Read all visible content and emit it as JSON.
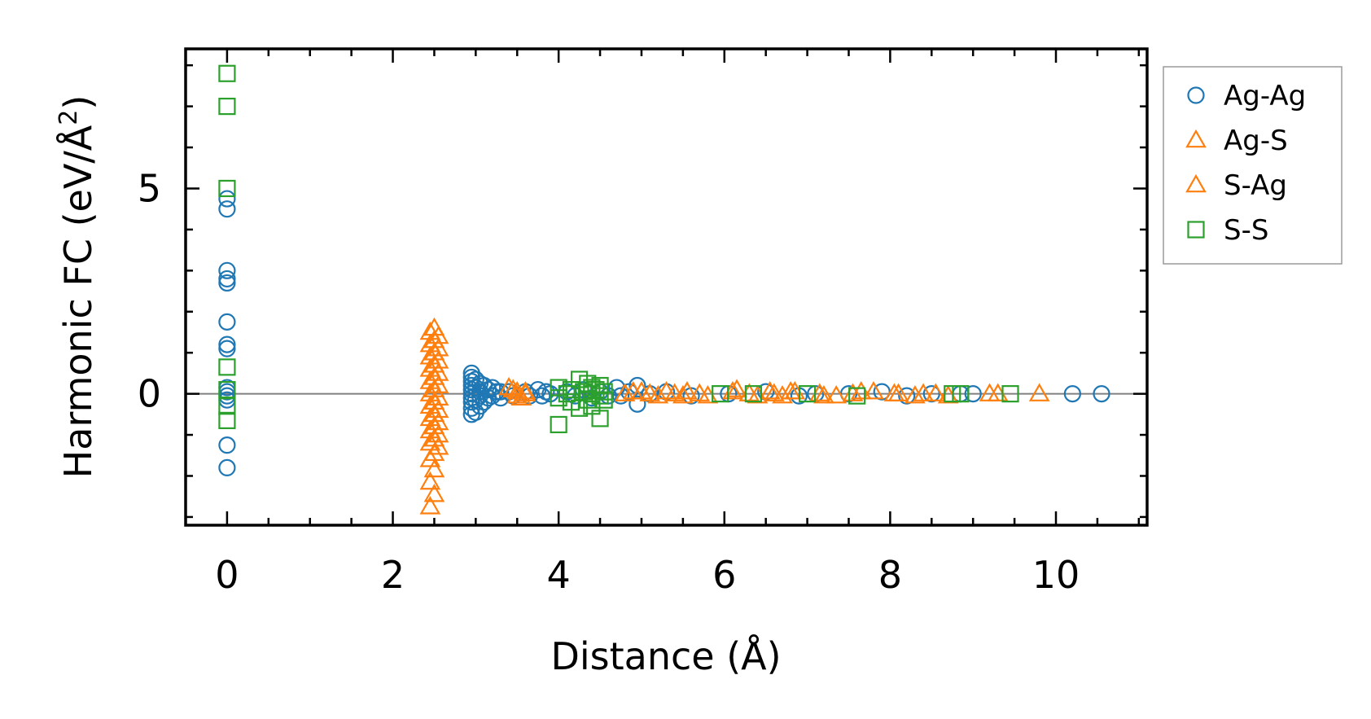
{
  "chart_data": {
    "type": "scatter",
    "xlabel": "Distance (Å)",
    "ylabel_main": "Harmonic FC (eV/Å",
    "ylabel_sup": "2",
    "ylabel_close": ")",
    "xlim": [
      -0.5,
      11.1
    ],
    "ylim": [
      -3.2,
      8.4
    ],
    "x_ticks": [
      0,
      2,
      4,
      6,
      8,
      10
    ],
    "x_tick_labels": [
      "0",
      "2",
      "4",
      "6",
      "8",
      "10"
    ],
    "y_ticks": [
      0,
      5
    ],
    "y_tick_labels": [
      "0",
      "5"
    ],
    "x_minor_step": 0.5,
    "y_minor_step": 1,
    "zero_line": true,
    "grid": false,
    "legend_position": "outside-right-top",
    "series": [
      {
        "name": "Ag-Ag",
        "marker": "circle",
        "color": "#1f77b4",
        "points": [
          [
            0,
            4.75
          ],
          [
            0,
            4.5
          ],
          [
            0,
            3.0
          ],
          [
            0,
            2.8
          ],
          [
            0,
            2.7
          ],
          [
            0,
            1.75
          ],
          [
            0,
            1.2
          ],
          [
            0,
            1.1
          ],
          [
            0,
            0.15
          ],
          [
            0,
            0.05
          ],
          [
            0,
            -0.05
          ],
          [
            0,
            -0.15
          ],
          [
            0,
            -1.25
          ],
          [
            0,
            -1.8
          ],
          [
            2.95,
            0.5
          ],
          [
            2.95,
            0.4
          ],
          [
            2.95,
            0.3
          ],
          [
            2.95,
            0.2
          ],
          [
            2.95,
            0.1
          ],
          [
            2.95,
            0.0
          ],
          [
            2.95,
            -0.1
          ],
          [
            2.95,
            -0.2
          ],
          [
            2.95,
            -0.35
          ],
          [
            2.95,
            -0.5
          ],
          [
            3.0,
            0.35
          ],
          [
            3.0,
            0.15
          ],
          [
            3.0,
            -0.15
          ],
          [
            3.0,
            -0.45
          ],
          [
            3.05,
            0.25
          ],
          [
            3.05,
            0.05
          ],
          [
            3.05,
            -0.05
          ],
          [
            3.05,
            -0.3
          ],
          [
            3.1,
            0.2
          ],
          [
            3.1,
            -0.2
          ],
          [
            3.15,
            0.1
          ],
          [
            3.15,
            -0.1
          ],
          [
            3.2,
            0.15
          ],
          [
            3.2,
            -0.05
          ],
          [
            3.25,
            0.05
          ],
          [
            3.3,
            0.05
          ],
          [
            3.3,
            -0.1
          ],
          [
            3.4,
            0.05
          ],
          [
            3.45,
            -0.05
          ],
          [
            3.6,
            0.05
          ],
          [
            3.65,
            -0.05
          ],
          [
            3.75,
            0.1
          ],
          [
            3.8,
            -0.05
          ],
          [
            3.85,
            0.05
          ],
          [
            3.9,
            0.0
          ],
          [
            4.1,
            0.05
          ],
          [
            4.2,
            -0.05
          ],
          [
            4.3,
            0.1
          ],
          [
            4.4,
            -0.1
          ],
          [
            4.5,
            0.05
          ],
          [
            4.6,
            -0.05
          ],
          [
            4.7,
            0.15
          ],
          [
            4.75,
            -0.05
          ],
          [
            4.85,
            0.05
          ],
          [
            4.95,
            -0.25
          ],
          [
            4.95,
            0.2
          ],
          [
            5.1,
            0.0
          ],
          [
            5.3,
            0.05
          ],
          [
            5.6,
            -0.05
          ],
          [
            6.05,
            0.0
          ],
          [
            6.5,
            0.05
          ],
          [
            6.9,
            -0.05
          ],
          [
            7.1,
            0.0
          ],
          [
            7.5,
            0.0
          ],
          [
            7.9,
            0.05
          ],
          [
            8.2,
            -0.05
          ],
          [
            8.5,
            0.0
          ],
          [
            8.85,
            0.0
          ],
          [
            9.0,
            0.0
          ],
          [
            10.2,
            0.0
          ],
          [
            10.55,
            0.0
          ]
        ]
      },
      {
        "name": "Ag-S",
        "marker": "triangle",
        "color": "#ff7f0e",
        "points": [
          [
            2.45,
            1.5
          ],
          [
            2.5,
            1.3
          ],
          [
            2.55,
            1.1
          ],
          [
            2.45,
            0.9
          ],
          [
            2.5,
            0.7
          ],
          [
            2.55,
            0.5
          ],
          [
            2.45,
            0.3
          ],
          [
            2.5,
            0.1
          ],
          [
            2.55,
            -0.1
          ],
          [
            2.45,
            -0.3
          ],
          [
            2.5,
            -0.5
          ],
          [
            2.55,
            -0.7
          ],
          [
            2.45,
            -0.9
          ],
          [
            2.5,
            -1.1
          ],
          [
            2.55,
            -1.3
          ],
          [
            2.45,
            -1.6
          ],
          [
            3.4,
            0.15
          ],
          [
            3.5,
            0.05
          ],
          [
            3.55,
            -0.1
          ],
          [
            3.6,
            0.0
          ],
          [
            4.8,
            0.0
          ],
          [
            5.0,
            0.05
          ],
          [
            5.2,
            -0.05
          ],
          [
            5.4,
            0.0
          ],
          [
            5.55,
            0.05
          ],
          [
            5.8,
            -0.05
          ],
          [
            6.15,
            0.1
          ],
          [
            6.3,
            0.0
          ],
          [
            6.55,
            0.05
          ],
          [
            6.7,
            -0.05
          ],
          [
            6.85,
            0.05
          ],
          [
            7.15,
            0.0
          ],
          [
            7.35,
            -0.05
          ],
          [
            7.65,
            0.05
          ],
          [
            8.05,
            0.0
          ],
          [
            8.3,
            -0.05
          ],
          [
            8.55,
            0.0
          ],
          [
            9.3,
            0.0
          ]
        ]
      },
      {
        "name": "S-Ag",
        "marker": "triangle",
        "color": "#ff7f0e",
        "points": [
          [
            2.5,
            1.6
          ],
          [
            2.55,
            1.4
          ],
          [
            2.45,
            1.2
          ],
          [
            2.5,
            1.0
          ],
          [
            2.55,
            0.8
          ],
          [
            2.45,
            0.6
          ],
          [
            2.5,
            0.4
          ],
          [
            2.55,
            0.2
          ],
          [
            2.45,
            0.0
          ],
          [
            2.5,
            -0.2
          ],
          [
            2.55,
            -0.4
          ],
          [
            2.45,
            -0.6
          ],
          [
            2.5,
            -0.8
          ],
          [
            2.55,
            -1.0
          ],
          [
            2.45,
            -1.2
          ],
          [
            2.5,
            -1.45
          ],
          [
            2.5,
            -1.85
          ],
          [
            2.45,
            -2.15
          ],
          [
            2.5,
            -2.45
          ],
          [
            2.45,
            -2.75
          ],
          [
            3.45,
            0.1
          ],
          [
            3.5,
            -0.05
          ],
          [
            3.6,
            0.05
          ],
          [
            4.9,
            0.05
          ],
          [
            5.1,
            0.0
          ],
          [
            5.3,
            0.05
          ],
          [
            5.5,
            -0.05
          ],
          [
            5.7,
            0.0
          ],
          [
            6.1,
            0.05
          ],
          [
            6.4,
            -0.05
          ],
          [
            6.6,
            0.0
          ],
          [
            6.8,
            0.05
          ],
          [
            7.2,
            -0.05
          ],
          [
            7.55,
            0.0
          ],
          [
            7.8,
            0.05
          ],
          [
            8.1,
            0.0
          ],
          [
            8.4,
            0.0
          ],
          [
            8.7,
            -0.05
          ],
          [
            9.2,
            0.0
          ],
          [
            9.8,
            0.0
          ]
        ]
      },
      {
        "name": "S-S",
        "marker": "square",
        "color": "#2ca02c",
        "points": [
          [
            0,
            7.8
          ],
          [
            0,
            7.0
          ],
          [
            0,
            5.0
          ],
          [
            0,
            0.65
          ],
          [
            0,
            0.1
          ],
          [
            0,
            -0.3
          ],
          [
            0,
            -0.65
          ],
          [
            4.0,
            0.15
          ],
          [
            4.0,
            -0.1
          ],
          [
            4.0,
            -0.75
          ],
          [
            4.1,
            0.0
          ],
          [
            4.15,
            0.1
          ],
          [
            4.15,
            -0.2
          ],
          [
            4.25,
            0.35
          ],
          [
            4.25,
            -0.35
          ],
          [
            4.3,
            0.05
          ],
          [
            4.35,
            0.25
          ],
          [
            4.35,
            -0.15
          ],
          [
            4.4,
            0.15
          ],
          [
            4.4,
            0.0
          ],
          [
            4.4,
            -0.3
          ],
          [
            4.45,
            0.1
          ],
          [
            4.5,
            -0.05
          ],
          [
            4.5,
            0.2
          ],
          [
            4.5,
            -0.6
          ],
          [
            4.55,
            0.05
          ],
          [
            4.55,
            -0.15
          ],
          [
            5.95,
            0.0
          ],
          [
            6.35,
            0.0
          ],
          [
            7.0,
            0.0
          ],
          [
            7.6,
            -0.05
          ],
          [
            8.75,
            0.0
          ],
          [
            8.85,
            0.0
          ],
          [
            9.45,
            0.0
          ]
        ]
      }
    ]
  }
}
